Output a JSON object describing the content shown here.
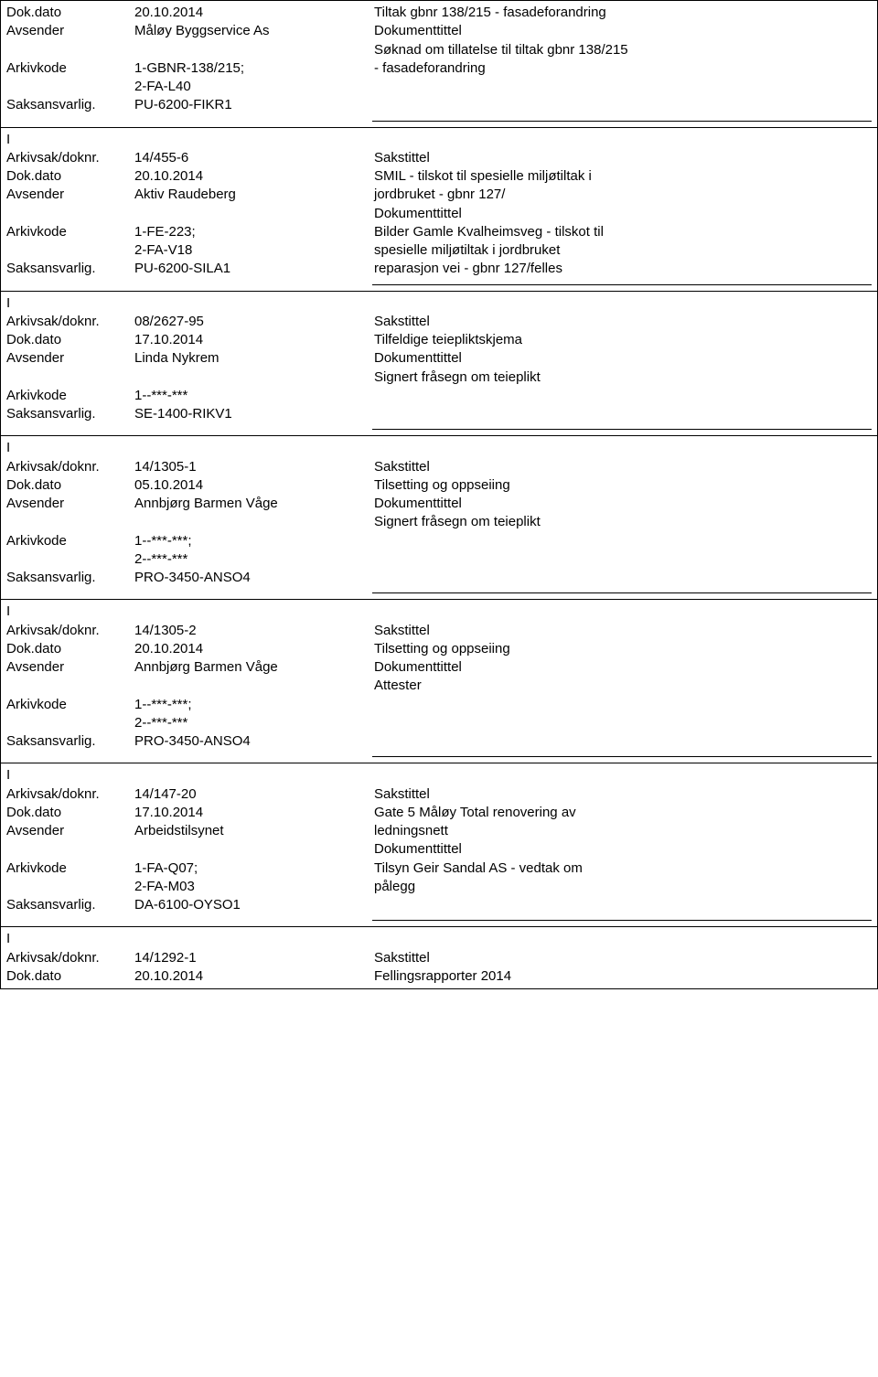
{
  "labels": {
    "dokdato": "Dok.dato",
    "avsender": "Avsender",
    "arkivkode": "Arkivkode",
    "saksansvarlig": "Saksansvarlig.",
    "arkivsak": "Arkivsak/doknr.",
    "sakstittel": "Sakstittel",
    "dokumenttittel": "Dokumenttittel",
    "imark": "I"
  },
  "records": [
    {
      "dokdato": "20.10.2014",
      "avsender": "Måløy Byggservice As",
      "arkivkode": [
        "1-GBNR-138/215;",
        "2-FA-L40"
      ],
      "saksansvarlig": "PU-6200-FIKR1",
      "saks_lines": [
        "Tiltak gbnr 138/215 - fasadeforandring"
      ],
      "dok_lines": [
        "Søknad om tillatelse til tiltak gbnr 138/215",
        "- fasadeforandring"
      ],
      "arkivsak": null
    },
    {
      "arkivsak": "14/455-6",
      "dokdato": "20.10.2014",
      "avsender": "Aktiv Raudeberg",
      "arkivkode": [
        "1-FE-223;",
        "2-FA-V18"
      ],
      "saksansvarlig": "PU-6200-SILA1",
      "saks_lines": [
        "SMIL - tilskot til spesielle miljøtiltak i",
        "jordbruket - gbnr 127/"
      ],
      "dok_lines": [
        "Bilder Gamle Kvalheimsveg - tilskot til",
        "spesielle miljøtiltak i jordbruket",
        "reparasjon vei - gbnr 127/felles"
      ]
    },
    {
      "arkivsak": "08/2627-95",
      "dokdato": "17.10.2014",
      "avsender": "Linda Nykrem",
      "arkivkode": [
        "1--***-***"
      ],
      "saksansvarlig": "SE-1400-RIKV1",
      "saks_lines": [
        "Tilfeldige teiepliktskjema"
      ],
      "dok_lines": [
        "Signert fråsegn om teieplikt"
      ]
    },
    {
      "arkivsak": "14/1305-1",
      "dokdato": "05.10.2014",
      "avsender": "Annbjørg Barmen Våge",
      "arkivkode": [
        "1--***-***;",
        "2--***-***"
      ],
      "saksansvarlig": "PRO-3450-ANSO4",
      "saks_lines": [
        "Tilsetting og oppseiing"
      ],
      "dok_lines": [
        "Signert fråsegn om teieplikt"
      ]
    },
    {
      "arkivsak": "14/1305-2",
      "dokdato": "20.10.2014",
      "avsender": "Annbjørg Barmen Våge",
      "arkivkode": [
        "1--***-***;",
        "2--***-***"
      ],
      "saksansvarlig": "PRO-3450-ANSO4",
      "saks_lines": [
        "Tilsetting og oppseiing"
      ],
      "dok_lines": [
        "Attester"
      ]
    },
    {
      "arkivsak": "14/147-20",
      "dokdato": "17.10.2014",
      "avsender": "Arbeidstilsynet",
      "arkivkode": [
        "1-FA-Q07;",
        "2-FA-M03"
      ],
      "saksansvarlig": "DA-6100-OYSO1",
      "saks_lines": [
        "Gate 5 Måløy Total renovering av",
        "ledningsnett"
      ],
      "dok_lines": [
        "Tilsyn Geir Sandal AS - vedtak om",
        "pålegg"
      ]
    }
  ],
  "last_partial": {
    "arkivsak": "14/1292-1",
    "dokdato": "20.10.2014",
    "sakstittel_label": "Sakstittel",
    "saks_line": "Fellingsrapporter 2014"
  }
}
